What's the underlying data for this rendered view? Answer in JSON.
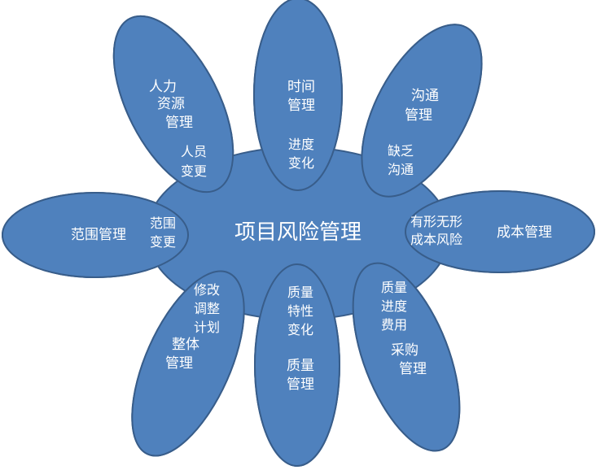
{
  "center": {
    "label": "项目风险管理"
  },
  "colors": {
    "fill": "#4f81bd",
    "stroke": "#385d8a",
    "text": "#ffffff"
  },
  "petals": {
    "human_resources": {
      "area": [
        "人力",
        "资源",
        "管理"
      ],
      "risk": [
        "人员",
        "变更"
      ]
    },
    "time": {
      "area": [
        "时间",
        "管理"
      ],
      "risk": [
        "进度",
        "变化"
      ]
    },
    "communication": {
      "area": [
        "沟通",
        "管理"
      ],
      "risk": [
        "缺乏",
        "沟通"
      ]
    },
    "scope": {
      "area": "范围管理",
      "risk": [
        "范围",
        "变更"
      ]
    },
    "cost": {
      "area": "成本管理",
      "risk": [
        "有形无形",
        "成本风险"
      ]
    },
    "integration": {
      "area": [
        "整体",
        "管理"
      ],
      "risk": [
        "修改",
        "调整",
        "计划"
      ]
    },
    "quality": {
      "area": [
        "质量",
        "管理"
      ],
      "risk": [
        "质量",
        "特性",
        "变化"
      ]
    },
    "procurement": {
      "area": [
        "采购",
        "管理"
      ],
      "risk": [
        "质量",
        "进度",
        "费用"
      ]
    }
  }
}
